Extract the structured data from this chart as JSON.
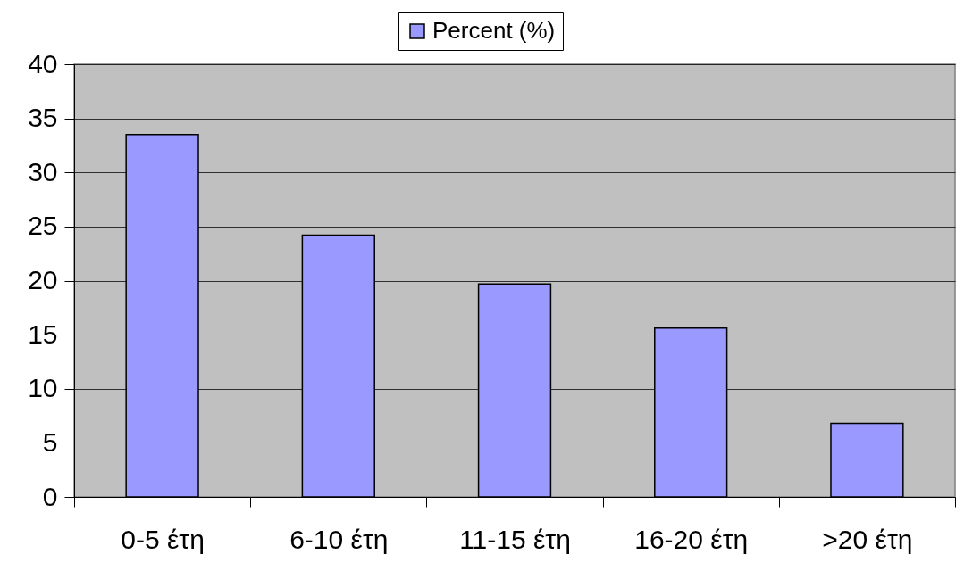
{
  "chart_data": {
    "type": "bar",
    "categories": [
      "0-5 έτη",
      "6-10 έτη",
      "11-15 έτη",
      "16-20 έτη",
      ">20 έτη"
    ],
    "series": [
      {
        "name": "Percent (%)",
        "color": "#9999ff",
        "values": [
          33.5,
          24.2,
          19.7,
          15.6,
          6.8
        ]
      }
    ],
    "ylim": [
      0,
      40
    ],
    "yticks": [
      0,
      5,
      10,
      15,
      20,
      25,
      30,
      35,
      40
    ],
    "grid": "y",
    "legend": "top"
  }
}
